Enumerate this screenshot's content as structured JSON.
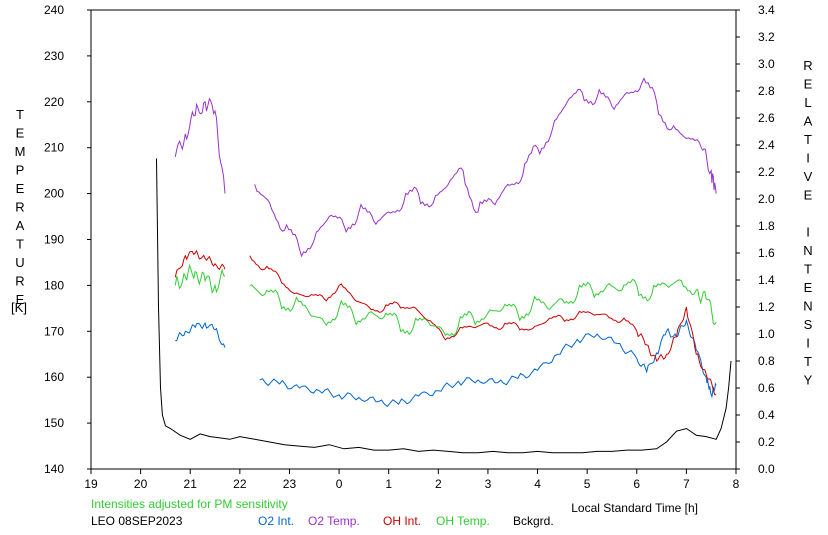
{
  "chart_data": {
    "type": "line",
    "title": "",
    "xlabel": "Local Standard Time [h]",
    "ylabel_left": "TEMPERATURE",
    "ylabel_left_unit": "[K]",
    "ylabel_right": "RELATIVE INTENSITY",
    "x_ticks": [
      19,
      20,
      21,
      22,
      23,
      24,
      25,
      26,
      27,
      28,
      29,
      30,
      31,
      32
    ],
    "x_tick_labels": [
      "19",
      "20",
      "21",
      "22",
      "23",
      "0",
      "1",
      "2",
      "3",
      "4",
      "5",
      "6",
      "7",
      "8"
    ],
    "xlim": [
      19,
      32
    ],
    "ylim_left": [
      140,
      240
    ],
    "y_ticks_left": [
      "140",
      "150",
      "160",
      "170",
      "180",
      "190",
      "200",
      "210",
      "220",
      "230",
      "240"
    ],
    "ylim_right": [
      0.0,
      3.4
    ],
    "y_ticks_right": [
      "0.0",
      "0.2",
      "0.4",
      "0.6",
      "0.8",
      "1.0",
      "1.2",
      "1.4",
      "1.6",
      "1.8",
      "2.0",
      "2.2",
      "2.4",
      "2.6",
      "2.8",
      "3.0",
      "3.2",
      "3.4"
    ],
    "grid": false,
    "note": "Intensities adjusted for PM sensitivity",
    "station": "LEO 08SEP2023",
    "legend_position": "bottom",
    "series": [
      {
        "name": "O2 Int.",
        "axis": "right",
        "color": "#0066cc",
        "x": [
          20.7,
          20.9,
          21.1,
          21.3,
          21.5,
          21.7,
          22.0,
          22.4,
          22.8,
          23.2,
          23.6,
          24.0,
          24.4,
          24.8,
          25.2,
          25.6,
          26.0,
          26.4,
          26.8,
          27.2,
          27.6,
          28.0,
          28.4,
          28.8,
          29.2,
          29.6,
          30.0,
          30.2,
          30.4,
          30.6,
          30.8,
          31.0,
          31.2,
          31.4,
          31.5,
          31.6
        ],
        "y": [
          0.95,
          1.02,
          1.05,
          1.08,
          1.03,
          0.9,
          null,
          0.66,
          0.63,
          0.6,
          0.58,
          0.55,
          0.53,
          0.5,
          0.48,
          0.54,
          0.58,
          0.65,
          0.66,
          0.64,
          0.67,
          0.73,
          0.85,
          0.96,
          1.0,
          0.93,
          0.82,
          0.72,
          0.86,
          1.02,
          0.98,
          1.1,
          0.88,
          0.68,
          0.55,
          0.62
        ]
      },
      {
        "name": "O2 Temp.",
        "axis": "left",
        "color": "#9933cc",
        "x": [
          20.7,
          20.9,
          21.1,
          21.3,
          21.5,
          21.7,
          22.0,
          22.3,
          22.6,
          22.9,
          23.2,
          23.5,
          23.8,
          24.1,
          24.4,
          24.7,
          25.0,
          25.3,
          25.6,
          25.9,
          26.2,
          26.5,
          26.8,
          27.1,
          27.4,
          27.7,
          28.0,
          28.3,
          28.6,
          28.9,
          29.2,
          29.5,
          29.8,
          30.1,
          30.4,
          30.7,
          31.0,
          31.3,
          31.5,
          31.6
        ],
        "y": [
          208,
          213,
          217,
          220,
          218,
          200,
          null,
          202,
          198,
          192,
          188,
          190,
          195,
          193,
          196,
          194,
          196,
          198,
          200,
          198,
          202,
          205,
          196,
          198,
          202,
          204,
          210,
          214,
          220,
          222,
          221,
          219,
          222,
          224,
          220,
          214,
          212,
          210,
          205,
          200
        ]
      },
      {
        "name": "OH Int.",
        "axis": "right",
        "color": "#cc0000",
        "x": [
          20.7,
          20.9,
          21.1,
          21.3,
          21.5,
          21.7,
          22.0,
          22.2,
          22.5,
          22.8,
          23.1,
          23.4,
          23.7,
          24.0,
          24.3,
          24.6,
          24.9,
          25.2,
          25.5,
          25.8,
          26.1,
          26.4,
          26.7,
          27.0,
          27.3,
          27.6,
          27.9,
          28.2,
          28.5,
          28.8,
          29.1,
          29.4,
          29.7,
          30.0,
          30.2,
          30.4,
          30.6,
          30.8,
          31.0,
          31.2,
          31.4,
          31.6
        ],
        "y": [
          1.42,
          1.58,
          1.6,
          1.56,
          1.52,
          1.48,
          null,
          1.58,
          1.48,
          1.42,
          1.3,
          1.28,
          1.26,
          1.36,
          1.26,
          1.2,
          1.18,
          1.22,
          1.2,
          1.1,
          0.98,
          1.02,
          1.05,
          1.08,
          1.05,
          1.06,
          1.04,
          1.1,
          1.12,
          1.14,
          1.15,
          1.14,
          1.1,
          1.02,
          0.92,
          0.8,
          0.85,
          0.98,
          1.2,
          0.85,
          0.7,
          0.55
        ]
      },
      {
        "name": "OH Temp.",
        "axis": "left",
        "color": "#33cc33",
        "x": [
          20.7,
          20.9,
          21.1,
          21.3,
          21.5,
          21.7,
          22.0,
          22.2,
          22.5,
          22.8,
          23.1,
          23.4,
          23.7,
          24.0,
          24.3,
          24.6,
          24.9,
          25.2,
          25.5,
          25.8,
          26.1,
          26.4,
          26.7,
          27.0,
          27.3,
          27.6,
          27.9,
          28.2,
          28.5,
          28.8,
          29.1,
          29.4,
          29.7,
          30.0,
          30.3,
          30.6,
          30.9,
          31.2,
          31.4,
          31.6
        ],
        "y": [
          180,
          182,
          183,
          181,
          180,
          182,
          null,
          180,
          178,
          177,
          176,
          174,
          172,
          175,
          173,
          174,
          173,
          172,
          171,
          172,
          170,
          171,
          173,
          174,
          175,
          174,
          176,
          175,
          177,
          178,
          179,
          180,
          179,
          180,
          178,
          180,
          181,
          179,
          177,
          172
        ]
      },
      {
        "name": "Bckgrd.",
        "axis": "right",
        "color": "#000000",
        "x": [
          20.32,
          20.36,
          20.4,
          20.44,
          20.5,
          20.6,
          20.8,
          21.0,
          21.2,
          21.4,
          21.6,
          21.8,
          22.0,
          22.3,
          22.6,
          22.9,
          23.2,
          23.5,
          23.8,
          24.1,
          24.4,
          24.7,
          25.0,
          25.3,
          25.6,
          25.9,
          26.2,
          26.5,
          26.8,
          27.1,
          27.4,
          27.7,
          28.0,
          28.3,
          28.6,
          28.9,
          29.2,
          29.5,
          29.8,
          30.1,
          30.4,
          30.6,
          30.8,
          31.0,
          31.2,
          31.4,
          31.6,
          31.7,
          31.8,
          31.85,
          31.9
        ],
        "y": [
          2.3,
          1.2,
          0.6,
          0.4,
          0.32,
          0.3,
          0.25,
          0.22,
          0.26,
          0.24,
          0.23,
          0.22,
          0.24,
          0.22,
          0.2,
          0.18,
          0.17,
          0.16,
          0.18,
          0.15,
          0.16,
          0.14,
          0.14,
          0.15,
          0.13,
          0.14,
          0.13,
          0.12,
          0.12,
          0.13,
          0.12,
          0.12,
          0.13,
          0.12,
          0.12,
          0.12,
          0.13,
          0.13,
          0.14,
          0.14,
          0.15,
          0.2,
          0.28,
          0.3,
          0.25,
          0.24,
          0.22,
          0.3,
          0.45,
          0.6,
          0.8
        ]
      }
    ]
  }
}
